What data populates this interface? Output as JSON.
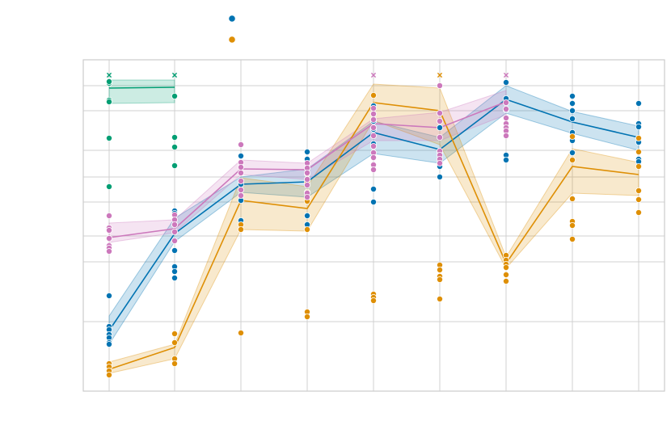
{
  "chart_data": {
    "type": "line",
    "title": "",
    "xlabel": "",
    "ylabel": "",
    "x": [
      1,
      2,
      3,
      4,
      5,
      6,
      7,
      8,
      9
    ],
    "ylim": [
      0,
      410
    ],
    "y_gridlines": [
      0,
      86,
      160,
      192,
      234,
      265,
      298,
      347,
      378,
      410
    ],
    "grid": true,
    "legend": {
      "placement": "top-center",
      "entries": [
        {
          "marker": "circle",
          "color": "#0173b2"
        },
        {
          "marker": "circle",
          "color": "#de8f05"
        }
      ]
    },
    "series": [
      {
        "color": "#029e73",
        "mean": [
          375,
          376
        ],
        "lower": [
          356,
          357
        ],
        "upper": [
          385,
          385
        ],
        "points": [
          [
            1,
            381
          ],
          [
            1,
            383
          ],
          [
            1,
            360
          ],
          [
            1,
            358
          ],
          [
            1,
            313
          ],
          [
            1,
            253
          ],
          [
            2,
            365
          ],
          [
            2,
            314
          ],
          [
            2,
            302
          ],
          [
            2,
            279
          ]
        ],
        "outliers": [
          [
            1,
            391
          ],
          [
            2,
            391
          ]
        ]
      },
      {
        "color": "#0173b2",
        "mean": [
          75,
          195,
          256,
          259,
          320,
          299,
          361,
          333,
          314
        ],
        "lower": [
          58,
          185,
          246,
          240,
          294,
          282,
          344,
          319,
          298
        ],
        "upper": [
          93,
          214,
          265,
          275,
          334,
          314,
          378,
          346,
          328
        ],
        "points": [
          [
            1,
            118
          ],
          [
            1,
            80
          ],
          [
            1,
            76
          ],
          [
            1,
            70
          ],
          [
            1,
            66
          ],
          [
            1,
            60
          ],
          [
            1,
            58
          ],
          [
            2,
            223
          ],
          [
            2,
            220
          ],
          [
            2,
            206
          ],
          [
            2,
            174
          ],
          [
            2,
            154
          ],
          [
            2,
            148
          ],
          [
            2,
            140
          ],
          [
            3,
            291
          ],
          [
            3,
            278
          ],
          [
            3,
            256
          ],
          [
            3,
            236
          ],
          [
            3,
            211
          ],
          [
            4,
            296
          ],
          [
            4,
            287
          ],
          [
            4,
            276
          ],
          [
            4,
            262
          ],
          [
            4,
            246
          ],
          [
            4,
            217
          ],
          [
            4,
            206
          ],
          [
            5,
            353
          ],
          [
            5,
            334
          ],
          [
            5,
            324
          ],
          [
            5,
            306
          ],
          [
            5,
            280
          ],
          [
            5,
            250
          ],
          [
            5,
            234
          ],
          [
            6,
            326
          ],
          [
            6,
            296
          ],
          [
            6,
            278
          ],
          [
            6,
            265
          ],
          [
            7,
            382
          ],
          [
            7,
            362
          ],
          [
            7,
            348
          ],
          [
            7,
            292
          ],
          [
            7,
            286
          ],
          [
            8,
            365
          ],
          [
            8,
            356
          ],
          [
            8,
            347
          ],
          [
            8,
            337
          ],
          [
            8,
            320
          ],
          [
            8,
            310
          ],
          [
            8,
            295
          ],
          [
            9,
            356
          ],
          [
            9,
            331
          ],
          [
            9,
            327
          ],
          [
            9,
            308
          ],
          [
            9,
            287
          ],
          [
            9,
            284
          ]
        ],
        "outliers": []
      },
      {
        "color": "#de8f05",
        "mean": [
          27,
          54,
          236,
          226,
          357,
          347,
          158,
          278,
          268
        ],
        "lower": [
          22,
          40,
          200,
          198,
          335,
          305,
          152,
          245,
          242
        ],
        "upper": [
          36,
          58,
          264,
          253,
          380,
          375,
          166,
          300,
          283
        ],
        "points": [
          [
            1,
            34
          ],
          [
            1,
            30
          ],
          [
            1,
            25
          ],
          [
            1,
            20
          ],
          [
            2,
            71
          ],
          [
            2,
            60
          ],
          [
            2,
            40
          ],
          [
            2,
            34
          ],
          [
            3,
            206
          ],
          [
            3,
            200
          ],
          [
            3,
            72
          ],
          [
            4,
            269
          ],
          [
            4,
            258
          ],
          [
            4,
            246
          ],
          [
            4,
            235
          ],
          [
            4,
            200
          ],
          [
            4,
            98
          ],
          [
            4,
            92
          ],
          [
            5,
            366
          ],
          [
            5,
            120
          ],
          [
            5,
            116
          ],
          [
            5,
            112
          ],
          [
            6,
            156
          ],
          [
            6,
            150
          ],
          [
            6,
            142
          ],
          [
            6,
            138
          ],
          [
            6,
            114
          ],
          [
            7,
            168
          ],
          [
            7,
            162
          ],
          [
            7,
            157
          ],
          [
            7,
            153
          ],
          [
            7,
            144
          ],
          [
            7,
            136
          ],
          [
            8,
            315
          ],
          [
            8,
            286
          ],
          [
            8,
            238
          ],
          [
            8,
            210
          ],
          [
            8,
            205
          ],
          [
            8,
            188
          ],
          [
            9,
            313
          ],
          [
            9,
            296
          ],
          [
            9,
            278
          ],
          [
            9,
            248
          ],
          [
            9,
            237
          ],
          [
            9,
            221
          ]
        ],
        "outliers": [
          [
            6,
            391
          ]
        ]
      },
      {
        "color": "#cc78bc",
        "mean": [
          190,
          201,
          275,
          274,
          331,
          326,
          358
        ],
        "lower": [
          184,
          196,
          268,
          262,
          310,
          310,
          342
        ],
        "upper": [
          208,
          212,
          286,
          282,
          337,
          345,
          372
        ],
        "points": [
          [
            1,
            217
          ],
          [
            1,
            202
          ],
          [
            1,
            199
          ],
          [
            1,
            189
          ],
          [
            1,
            180
          ],
          [
            1,
            177
          ],
          [
            1,
            173
          ],
          [
            2,
            218
          ],
          [
            2,
            212
          ],
          [
            2,
            206
          ],
          [
            2,
            197
          ],
          [
            2,
            186
          ],
          [
            3,
            305
          ],
          [
            3,
            283
          ],
          [
            3,
            277
          ],
          [
            3,
            270
          ],
          [
            3,
            260
          ],
          [
            3,
            249
          ],
          [
            3,
            242
          ],
          [
            4,
            282
          ],
          [
            4,
            276
          ],
          [
            4,
            270
          ],
          [
            4,
            262
          ],
          [
            4,
            255
          ],
          [
            4,
            245
          ],
          [
            4,
            240
          ],
          [
            5,
            350
          ],
          [
            5,
            343
          ],
          [
            5,
            336
          ],
          [
            5,
            326
          ],
          [
            5,
            316
          ],
          [
            5,
            303
          ],
          [
            5,
            295
          ],
          [
            5,
            289
          ],
          [
            5,
            280
          ],
          [
            5,
            274
          ],
          [
            6,
            378
          ],
          [
            6,
            344
          ],
          [
            6,
            334
          ],
          [
            6,
            314
          ],
          [
            6,
            297
          ],
          [
            6,
            292
          ],
          [
            6,
            287
          ],
          [
            6,
            282
          ],
          [
            7,
            357
          ],
          [
            7,
            349
          ],
          [
            7,
            338
          ],
          [
            7,
            331
          ],
          [
            7,
            326
          ],
          [
            7,
            322
          ],
          [
            7,
            316
          ]
        ],
        "outliers": [
          [
            5,
            391
          ],
          [
            7,
            391
          ]
        ]
      }
    ]
  }
}
